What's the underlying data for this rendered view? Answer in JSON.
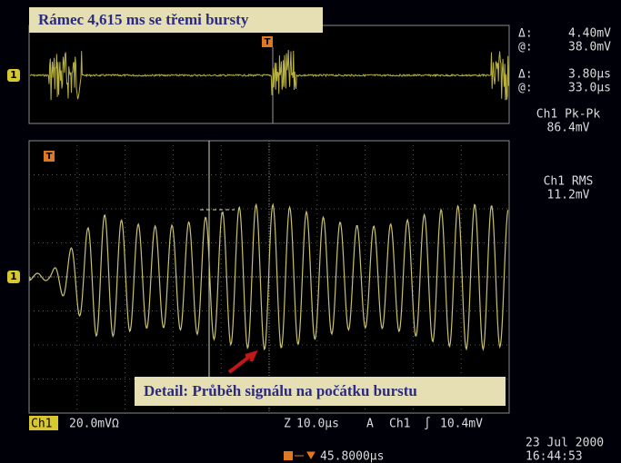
{
  "title": "Rámec 4,615 ms se třemi bursty",
  "caption": "Detail: Průběh signálu na počátku burstu",
  "markers": {
    "channel": "1",
    "trigger": "T"
  },
  "cursors": [
    {
      "label": "Δ:",
      "value": "4.40mV"
    },
    {
      "label": "@:",
      "value": "38.0mV"
    },
    {
      "label": "Δ:",
      "value": "3.80µs"
    },
    {
      "label": "@:",
      "value": "33.0µs"
    }
  ],
  "measurements": [
    {
      "label": "Ch1 Pk-Pk",
      "value": "86.4mV"
    },
    {
      "label": "Ch1 RMS",
      "value": "11.2mV"
    }
  ],
  "status": {
    "channel": "Ch1",
    "scale": "20.0mVΩ",
    "zoom": "Z",
    "timebase": "10.0µs",
    "acquire": "A",
    "trigger_channel": "Ch1",
    "trigger_slope": "∫",
    "trigger_level": "10.4mV",
    "date": "23 Jul 2000",
    "time": "16:44:53",
    "trigger_position": "45.8000µs"
  }
}
